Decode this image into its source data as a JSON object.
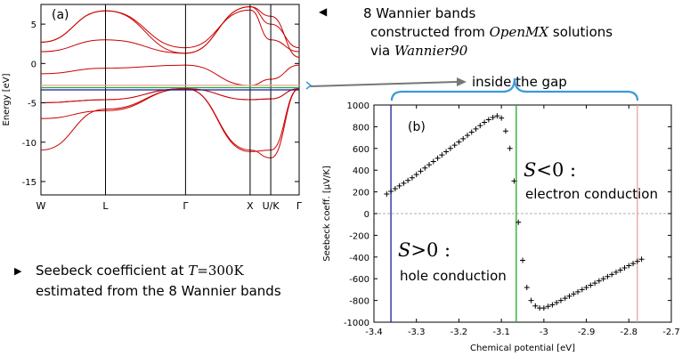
{
  "notes": {
    "wannier": {
      "line1": "8 Wannier bands",
      "line2_pre": "constructed from ",
      "line2_em": "OpenMX",
      "line2_post": " solutions",
      "line3_pre": "via ",
      "line3_em": "Wannier90"
    },
    "seebeck": {
      "line1_pre": "Seebeck coefficient at ",
      "line1_var": "T",
      "line1_val": "=300K",
      "line2": "estimated from the 8 Wannier bands"
    },
    "gap_label": "inside the gap"
  },
  "chart_data": [
    {
      "type": "line",
      "panel": "(a)",
      "ylabel": "Energy [eV]",
      "ylim": [
        -16.7,
        7.5
      ],
      "yticks": [
        5,
        0,
        -5,
        -10,
        -15
      ],
      "ytick_labels": [
        "5",
        "0",
        "-5",
        "-10",
        "-15"
      ],
      "kpoints": [
        "W",
        "L",
        "Γ",
        "X",
        "U/K",
        "Γ"
      ],
      "kpoint_positions": [
        0,
        0.25,
        0.56,
        0.81,
        0.89,
        1.0
      ],
      "band_color": "#cc0000",
      "chemical_potential_lines": [
        {
          "energy": -3.36,
          "color": "#1a1aa0"
        },
        {
          "energy": -3.07,
          "color": "#22aa22"
        },
        {
          "energy": -2.78,
          "color": "#e8a0a0"
        }
      ],
      "bands": [
        [
          -11.0,
          -5.8,
          -3.2,
          -11.2,
          -11.0,
          -3.2
        ],
        [
          -7.0,
          -6.0,
          -3.2,
          -11.0,
          -12.0,
          -3.2
        ],
        [
          -5.0,
          -4.6,
          -3.2,
          -4.6,
          -4.5,
          -3.2
        ],
        [
          -5.0,
          -4.6,
          -3.2,
          -4.6,
          -4.5,
          -3.2
        ],
        [
          -1.3,
          -0.6,
          -0.2,
          -2.8,
          -2.0,
          -0.2
        ],
        [
          1.5,
          3.0,
          1.3,
          7.2,
          6.0,
          0.8
        ],
        [
          2.7,
          6.7,
          1.3,
          7.2,
          5.0,
          2.0
        ],
        [
          2.7,
          6.7,
          2.0,
          6.8,
          3.0,
          1.5
        ]
      ]
    },
    {
      "type": "scatter",
      "panel": "(b)",
      "xlabel": "Chemical potential [eV]",
      "ylabel": "Seebeck coeff. [μV/K]",
      "xlim": [
        -3.4,
        -2.7
      ],
      "ylim": [
        -1000,
        1000
      ],
      "xticks": [
        -3.4,
        -3.3,
        -3.2,
        -3.1,
        -3.0,
        -2.9,
        -2.8,
        -2.7
      ],
      "xtick_labels": [
        "-3.4",
        "-3.3",
        "-3.2",
        "-3.1",
        "-3",
        "-2.9",
        "-2.8",
        "-2.7"
      ],
      "yticks": [
        1000,
        800,
        600,
        400,
        200,
        0,
        -200,
        -400,
        -600,
        -800,
        -1000
      ],
      "ytick_labels": [
        "1000",
        "800",
        "600",
        "400",
        "200",
        "0",
        "-200",
        "-400",
        "-600",
        "-800",
        "-1000"
      ],
      "vertical_lines": [
        {
          "x": -3.36,
          "color": "#1a1aa0"
        },
        {
          "x": -3.065,
          "color": "#22aa22"
        },
        {
          "x": -2.78,
          "color": "#e8a0a0"
        }
      ],
      "annotations": {
        "neg_S": "S",
        "neg_rel": "<0 :",
        "neg_desc": "electron conduction",
        "pos_S": "S",
        "pos_rel": ">0 :",
        "pos_desc": "hole conduction"
      },
      "x": [
        -3.37,
        -3.36,
        -3.35,
        -3.34,
        -3.33,
        -3.32,
        -3.31,
        -3.3,
        -3.29,
        -3.28,
        -3.27,
        -3.26,
        -3.25,
        -3.24,
        -3.23,
        -3.22,
        -3.21,
        -3.2,
        -3.19,
        -3.18,
        -3.17,
        -3.16,
        -3.15,
        -3.14,
        -3.13,
        -3.12,
        -3.11,
        -3.1,
        -3.09,
        -3.08,
        -3.07,
        -3.06,
        -3.05,
        -3.04,
        -3.03,
        -3.02,
        -3.01,
        -3.0,
        -2.99,
        -2.98,
        -2.97,
        -2.96,
        -2.95,
        -2.94,
        -2.93,
        -2.92,
        -2.91,
        -2.9,
        -2.89,
        -2.88,
        -2.87,
        -2.86,
        -2.85,
        -2.84,
        -2.83,
        -2.82,
        -2.81,
        -2.8,
        -2.79,
        -2.78,
        -2.77
      ],
      "y": [
        180,
        205,
        230,
        255,
        280,
        305,
        330,
        360,
        390,
        420,
        450,
        480,
        510,
        540,
        570,
        600,
        630,
        660,
        690,
        720,
        750,
        780,
        810,
        840,
        865,
        885,
        900,
        880,
        760,
        600,
        300,
        -80,
        -430,
        -680,
        -800,
        -850,
        -870,
        -870,
        -855,
        -840,
        -820,
        -800,
        -780,
        -760,
        -740,
        -720,
        -700,
        -680,
        -660,
        -640,
        -620,
        -600,
        -580,
        -560,
        -540,
        -520,
        -500,
        -480,
        -460,
        -440,
        -420
      ]
    }
  ]
}
